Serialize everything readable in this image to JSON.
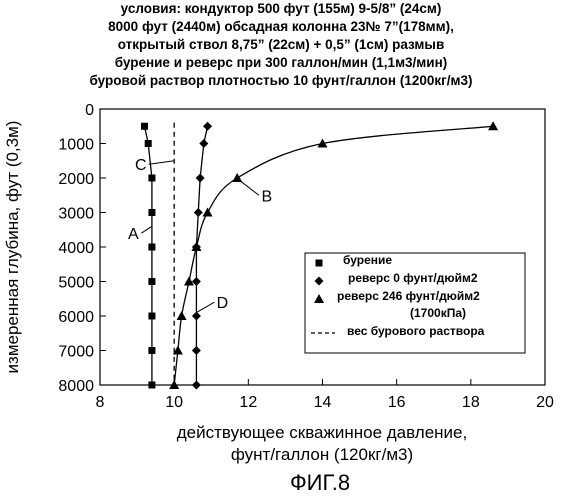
{
  "title_lines": [
    "условия: кондуктор 500 фут (155м) 9-5/8” (24см)",
    "8000 фут (2440м) обсадная колонна 23№ 7”(178мм),",
    "открытый ствол 8,75” (22см) + 0,5” (1см) размыв",
    "бурение и реверс при 300 галлон/мин (1,1м3/мин)",
    "буровой раствор плотностью 10 фунт/галлон (1200кг/м3)"
  ],
  "figure_label": "ФИГ.8",
  "chart_data": {
    "type": "line",
    "xlabel_lines": [
      "действующее скважинное давление,",
      "фунт/галлон (120кг/м3)"
    ],
    "ylabel": "измеренная глубина, фут (0,3м)",
    "xlim": [
      8,
      20
    ],
    "ylim": [
      0,
      8000
    ],
    "y_inverted": true,
    "x_ticks": [
      "8",
      "10",
      "12",
      "14",
      "16",
      "18",
      "20"
    ],
    "y_ticks": [
      "0",
      "1000",
      "2000",
      "3000",
      "4000",
      "5000",
      "6000",
      "7000",
      "8000"
    ],
    "grid": false,
    "legend_position": "bottom-right",
    "series": [
      {
        "name": "бурение",
        "marker": "diamond",
        "x": [
          10.9,
          10.8,
          10.7,
          10.65,
          10.6,
          10.6,
          10.6,
          10.6,
          10.6
        ],
        "y": [
          500,
          1000,
          2000,
          3000,
          4000,
          5000,
          6000,
          7000,
          8000
        ]
      },
      {
        "name": "реверс 0 фунт/дюйм2",
        "marker": "square",
        "x": [
          9.2,
          9.3,
          9.4,
          9.4,
          9.4,
          9.4,
          9.4,
          9.4,
          9.4
        ],
        "y": [
          500,
          1000,
          2000,
          3000,
          4000,
          5000,
          6000,
          7000,
          8000
        ]
      },
      {
        "name": "реверс 246 фунт/дюйм2",
        "name_line2": "(1700кПа)",
        "marker": "triangle",
        "x": [
          18.6,
          14.0,
          11.7,
          10.9,
          10.6,
          10.4,
          10.2,
          10.1,
          10.0
        ],
        "y": [
          500,
          1000,
          2000,
          3000,
          4000,
          5000,
          6000,
          7000,
          8000
        ]
      },
      {
        "name": "вес бурового раствора",
        "marker": "dashed",
        "x": [
          10.0,
          10.0
        ],
        "y": [
          400,
          8000
        ]
      }
    ],
    "annotations": [
      {
        "text": "A",
        "x": 8.9,
        "y": 3600,
        "tx": 9.4,
        "ty": 3400
      },
      {
        "text": "B",
        "x": 12.5,
        "y": 2500,
        "tx": 11.8,
        "ty": 2100
      },
      {
        "text": "C",
        "x": 9.1,
        "y": 1600,
        "tx": 10.0,
        "ty": 1500
      },
      {
        "text": "D",
        "x": 11.3,
        "y": 5600,
        "tx": 10.6,
        "ty": 5900
      }
    ]
  }
}
